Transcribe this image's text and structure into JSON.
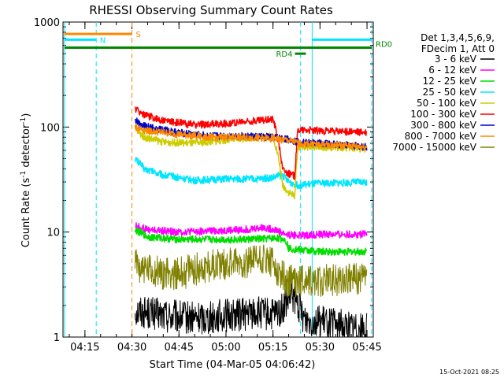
{
  "chart_data": {
    "type": "line",
    "title": "RHESSI Observing Summary Count Rates",
    "xlabel": "Start Time (04-Mar-05 04:06:42)",
    "ylabel_prefix": "Count Rate (s",
    "ylabel_sup": "-1",
    "ylabel_suffix": " detector",
    "ylabel_sup2": "-1",
    "ylabel_end": ")",
    "yscale": "log",
    "ylim": [
      1,
      1000
    ],
    "xlim_minutes": [
      248.0,
      347.0
    ],
    "x_ticks": [
      {
        "minute": 255,
        "label": "04:15"
      },
      {
        "minute": 270,
        "label": "04:30"
      },
      {
        "minute": 285,
        "label": "04:45"
      },
      {
        "minute": 300,
        "label": "05:00"
      },
      {
        "minute": 315,
        "label": "05:15"
      },
      {
        "minute": 330,
        "label": "05:30"
      },
      {
        "minute": 345,
        "label": "05:45"
      }
    ],
    "y_ticks": [
      {
        "value": 1,
        "label": "1"
      },
      {
        "value": 10,
        "label": "10"
      },
      {
        "value": 100,
        "label": "100"
      },
      {
        "value": 1000,
        "label": "1000"
      }
    ],
    "legend_header": [
      "Det 1,3,4,5,6,9,",
      "FDecim 1, Att 0"
    ],
    "series": [
      {
        "name": "3 - 6 keV",
        "color": "#000000",
        "x": [
          271.0,
          280,
          290,
          300,
          310,
          315,
          318,
          321,
          325,
          335,
          345
        ],
        "y": [
          1.8,
          1.6,
          1.5,
          1.6,
          1.7,
          1.6,
          1.8,
          2.5,
          1.5,
          1.3,
          1.2
        ]
      },
      {
        "name": "6 - 12 keV",
        "color": "#ff00ff",
        "x": [
          271.0,
          275,
          285,
          295,
          305,
          312,
          316,
          319,
          323,
          330,
          345
        ],
        "y": [
          11.5,
          10.5,
          10.0,
          10.2,
          10.5,
          11.0,
          10.5,
          9.5,
          9.3,
          9.5,
          9.5
        ]
      },
      {
        "name": "12 - 25 keV",
        "color": "#00dd00",
        "x": [
          271.0,
          275,
          285,
          295,
          305,
          312,
          316,
          319,
          320,
          323,
          330,
          345
        ],
        "y": [
          10.5,
          9.0,
          8.5,
          8.5,
          8.5,
          8.6,
          8.8,
          8.5,
          7.0,
          6.8,
          6.5,
          6.5
        ]
      },
      {
        "name": "25 - 50 keV",
        "color": "#00e5ff",
        "x": [
          271.0,
          274,
          280,
          290,
          300,
          310,
          315,
          318,
          320,
          323,
          330,
          345
        ],
        "y": [
          50,
          40,
          35,
          31,
          32,
          32,
          33,
          35,
          30,
          28,
          29,
          30
        ]
      },
      {
        "name": "50 - 100 keV",
        "color": "#cccc00",
        "x": [
          271.0,
          274,
          280,
          290,
          300,
          310,
          315,
          318,
          320,
          322,
          323,
          330,
          345
        ],
        "y": [
          95,
          80,
          72,
          70,
          75,
          80,
          82,
          28,
          24,
          22,
          65,
          65,
          62
        ]
      },
      {
        "name": "100 - 300 keV",
        "color": "#ff0000",
        "x": [
          271.0,
          274,
          280,
          290,
          300,
          310,
          315,
          318,
          320,
          322,
          323,
          330,
          340,
          345
        ],
        "y": [
          150,
          130,
          115,
          105,
          108,
          115,
          120,
          40,
          36,
          34,
          95,
          92,
          90,
          88
        ]
      },
      {
        "name": "300 - 800 keV",
        "color": "#0000cc",
        "x": [
          271.0,
          275,
          285,
          295,
          305,
          315,
          320,
          323,
          330,
          340,
          345
        ],
        "y": [
          115,
          100,
          88,
          82,
          82,
          80,
          76,
          72,
          70,
          67,
          64
        ]
      },
      {
        "name": "800 - 7000 keV",
        "color": "#ff8800",
        "x": [
          271.0,
          275,
          285,
          295,
          305,
          315,
          320,
          323,
          330,
          340,
          345
        ],
        "y": [
          100,
          92,
          85,
          80,
          80,
          78,
          74,
          70,
          68,
          66,
          64
        ]
      },
      {
        "name": "7000 - 15000 keV",
        "color": "#808000",
        "x": [
          271.0,
          275,
          285,
          295,
          305,
          312,
          316,
          319,
          322,
          328,
          335,
          345
        ],
        "y": [
          5.0,
          4.2,
          4.0,
          4.8,
          5.2,
          5.5,
          4.6,
          3.6,
          3.4,
          3.5,
          3.5,
          3.6
        ]
      }
    ],
    "bars": [
      {
        "label": "S",
        "color": "#ff8800",
        "y": 770,
        "x_start": 248.5,
        "x_end": 270.0
      },
      {
        "label": "N",
        "color": "#00e5ff",
        "y": 680,
        "x_start": 248.5,
        "x_end": 258.5
      },
      {
        "label": "",
        "color": "#00e5ff",
        "y": 680,
        "x_start": 327.5,
        "x_end": 346.5
      },
      {
        "label": "RD0",
        "color": "#008800",
        "y": 570,
        "x_start": 248.5,
        "x_end": 346.5
      },
      {
        "label": "RD4",
        "color": "#008800",
        "y": 500,
        "x_start": 322.0,
        "x_end": 325.5
      }
    ],
    "vlines": [
      {
        "minute": 248.5,
        "color": "#00e5ff",
        "style": "solid"
      },
      {
        "minute": 258.6,
        "color": "#00e5ff",
        "style": "dashed"
      },
      {
        "minute": 270.0,
        "color": "#ff8800",
        "style": "dashed"
      },
      {
        "minute": 323.8,
        "color": "#00e5ff",
        "style": "dashed"
      },
      {
        "minute": 327.5,
        "color": "#00e5ff",
        "style": "solid"
      },
      {
        "minute": 346.5,
        "color": "#00e5ff",
        "style": "dashed"
      }
    ],
    "footer_text": "15-Oct-2021 08:25",
    "grid": false,
    "legend_position": "right"
  }
}
